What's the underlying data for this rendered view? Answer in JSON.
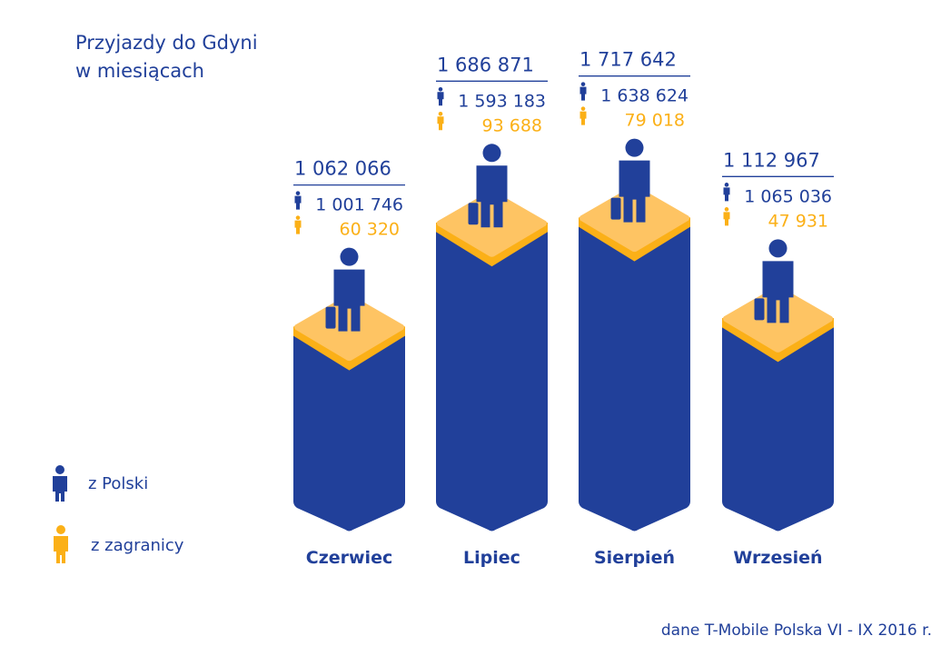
{
  "title_line1": "Przyjazdy do Gdyni",
  "title_line2": "w miesiącach",
  "legend": [
    {
      "label": "z Polski",
      "color": "#21409a"
    },
    {
      "label": "z zagranicy",
      "color": "#fbb017"
    }
  ],
  "source": "dane T-Mobile Polska VI - IX 2016 r.",
  "colors": {
    "primary": "#21409a",
    "accent": "#fbb017",
    "cap": "#fec463"
  },
  "chart_data": {
    "type": "bar",
    "categories": [
      "Czerwiec",
      "Lipiec",
      "Sierpień",
      "Wrzesień"
    ],
    "totals": [
      1062066,
      1686871,
      1717642,
      1112967
    ],
    "total_labels": [
      "1 062 066",
      "1 686 871",
      "1 717 642",
      "1 112 967"
    ],
    "series": [
      {
        "name": "z Polski",
        "values": [
          1001746,
          1593183,
          1638624,
          1065036
        ],
        "labels": [
          "1 001 746",
          "1 593 183",
          "1 638 624",
          "1 065 036"
        ]
      },
      {
        "name": "z zagranicy",
        "values": [
          60320,
          93688,
          79018,
          47931
        ],
        "labels": [
          "60 320",
          "93 688",
          "79 018",
          "47 931"
        ]
      }
    ]
  }
}
